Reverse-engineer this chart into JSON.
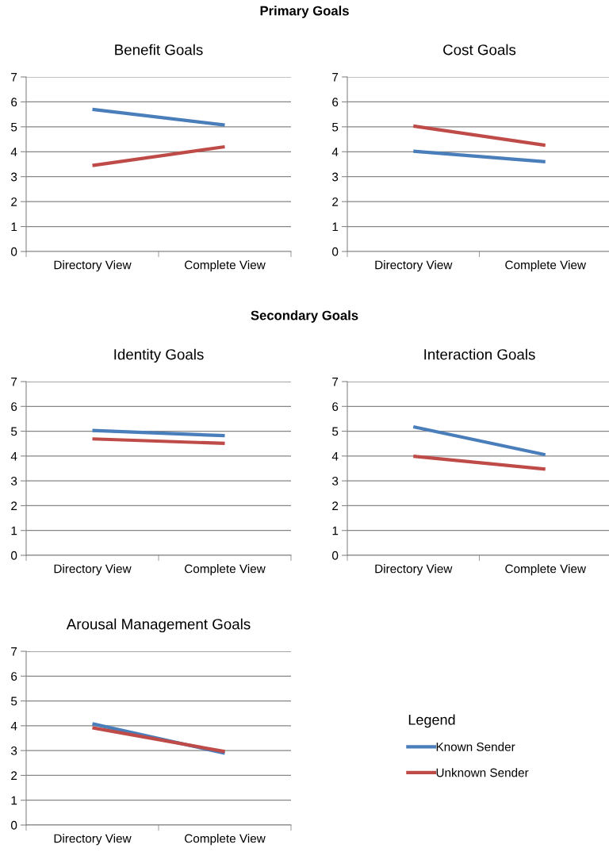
{
  "chart_data": [
    {
      "type": "line",
      "title": "Benefit Goals",
      "annotations": [
        "Primary Goals"
      ],
      "categories": [
        "Directory View",
        "Complete View"
      ],
      "ylim": [
        0,
        7
      ],
      "yticks": [
        0,
        1,
        2,
        3,
        4,
        5,
        6,
        7
      ],
      "grid": "y",
      "legend": false,
      "series": [
        {
          "color": "#4a7ebb",
          "values": [
            5.7,
            5.07
          ]
        },
        {
          "color": "#be4b48",
          "values": [
            3.45,
            4.2
          ]
        }
      ]
    },
    {
      "type": "line",
      "title": "Cost Goals",
      "categories": [
        "Directory View",
        "Complete View"
      ],
      "ylim": [
        0,
        7
      ],
      "yticks": [
        0,
        1,
        2,
        3,
        4,
        5,
        6,
        7
      ],
      "grid": "y",
      "legend": false,
      "series": [
        {
          "color": "#4a7ebb",
          "values": [
            4.02,
            3.6
          ]
        },
        {
          "color": "#be4b48",
          "values": [
            5.03,
            4.26
          ]
        }
      ]
    },
    {
      "type": "line",
      "title": "Identity Goals",
      "annotations": [
        "Secondary Goals"
      ],
      "categories": [
        "Directory View",
        "Complete View"
      ],
      "ylim": [
        0,
        7
      ],
      "yticks": [
        0,
        1,
        2,
        3,
        4,
        5,
        6,
        7
      ],
      "grid": "y",
      "legend": false,
      "series": [
        {
          "color": "#4a7ebb",
          "values": [
            5.03,
            4.82
          ]
        },
        {
          "color": "#be4b48",
          "values": [
            4.69,
            4.51
          ]
        }
      ]
    },
    {
      "type": "line",
      "title": "Interaction Goals",
      "categories": [
        "Directory View",
        "Complete View"
      ],
      "ylim": [
        0,
        7
      ],
      "yticks": [
        0,
        1,
        2,
        3,
        4,
        5,
        6,
        7
      ],
      "grid": "y",
      "legend": false,
      "series": [
        {
          "color": "#4a7ebb",
          "values": [
            5.18,
            4.05
          ]
        },
        {
          "color": "#be4b48",
          "values": [
            3.99,
            3.47
          ]
        }
      ]
    },
    {
      "type": "line",
      "title": "Arousal Management Goals",
      "categories": [
        "Directory View",
        "Complete View"
      ],
      "ylim": [
        0,
        7
      ],
      "yticks": [
        0,
        1,
        2,
        3,
        4,
        5,
        6,
        7
      ],
      "grid": "y",
      "legend": "right",
      "legend_title": "Legend",
      "series": [
        {
          "name": "Known Sender",
          "color": "#4a7ebb",
          "values": [
            4.08,
            2.89
          ]
        },
        {
          "name": "Unknown Sender",
          "color": "#be4b48",
          "values": [
            3.92,
            2.96
          ]
        }
      ]
    }
  ]
}
